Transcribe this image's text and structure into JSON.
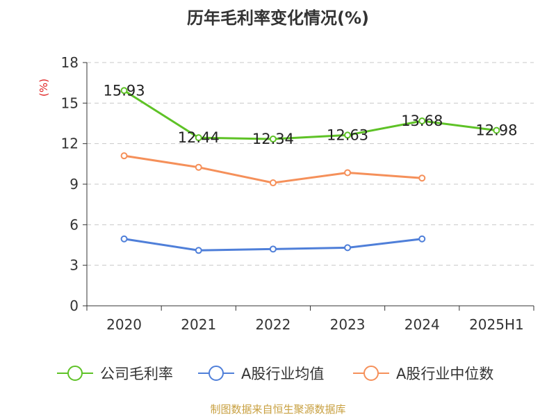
{
  "chart_data": {
    "type": "line",
    "title": "历年毛利率变化情况(%)",
    "ylabel": "(%)",
    "categories": [
      "2020",
      "2021",
      "2022",
      "2023",
      "2024",
      "2025H1"
    ],
    "ylim": [
      0,
      18
    ],
    "yticks": [
      0,
      3,
      6,
      9,
      12,
      15,
      18
    ],
    "grid": true,
    "legend_position": "bottom",
    "series": [
      {
        "name": "公司毛利率",
        "color": "#5ec226",
        "values": [
          15.93,
          12.44,
          12.34,
          12.63,
          13.68,
          12.98
        ],
        "labels": [
          "15.93",
          "12.44",
          "12.34",
          "12.63",
          "13.68",
          "12.98"
        ]
      },
      {
        "name": "A股行业均值",
        "color": "#4f7fd9",
        "values": [
          4.95,
          4.1,
          4.2,
          4.3,
          4.95,
          null
        ]
      },
      {
        "name": "A股行业中位数",
        "color": "#f5905a",
        "values": [
          11.1,
          10.25,
          9.1,
          9.85,
          9.45,
          null
        ]
      }
    ]
  },
  "source": "制图数据来自恒生聚源数据库"
}
